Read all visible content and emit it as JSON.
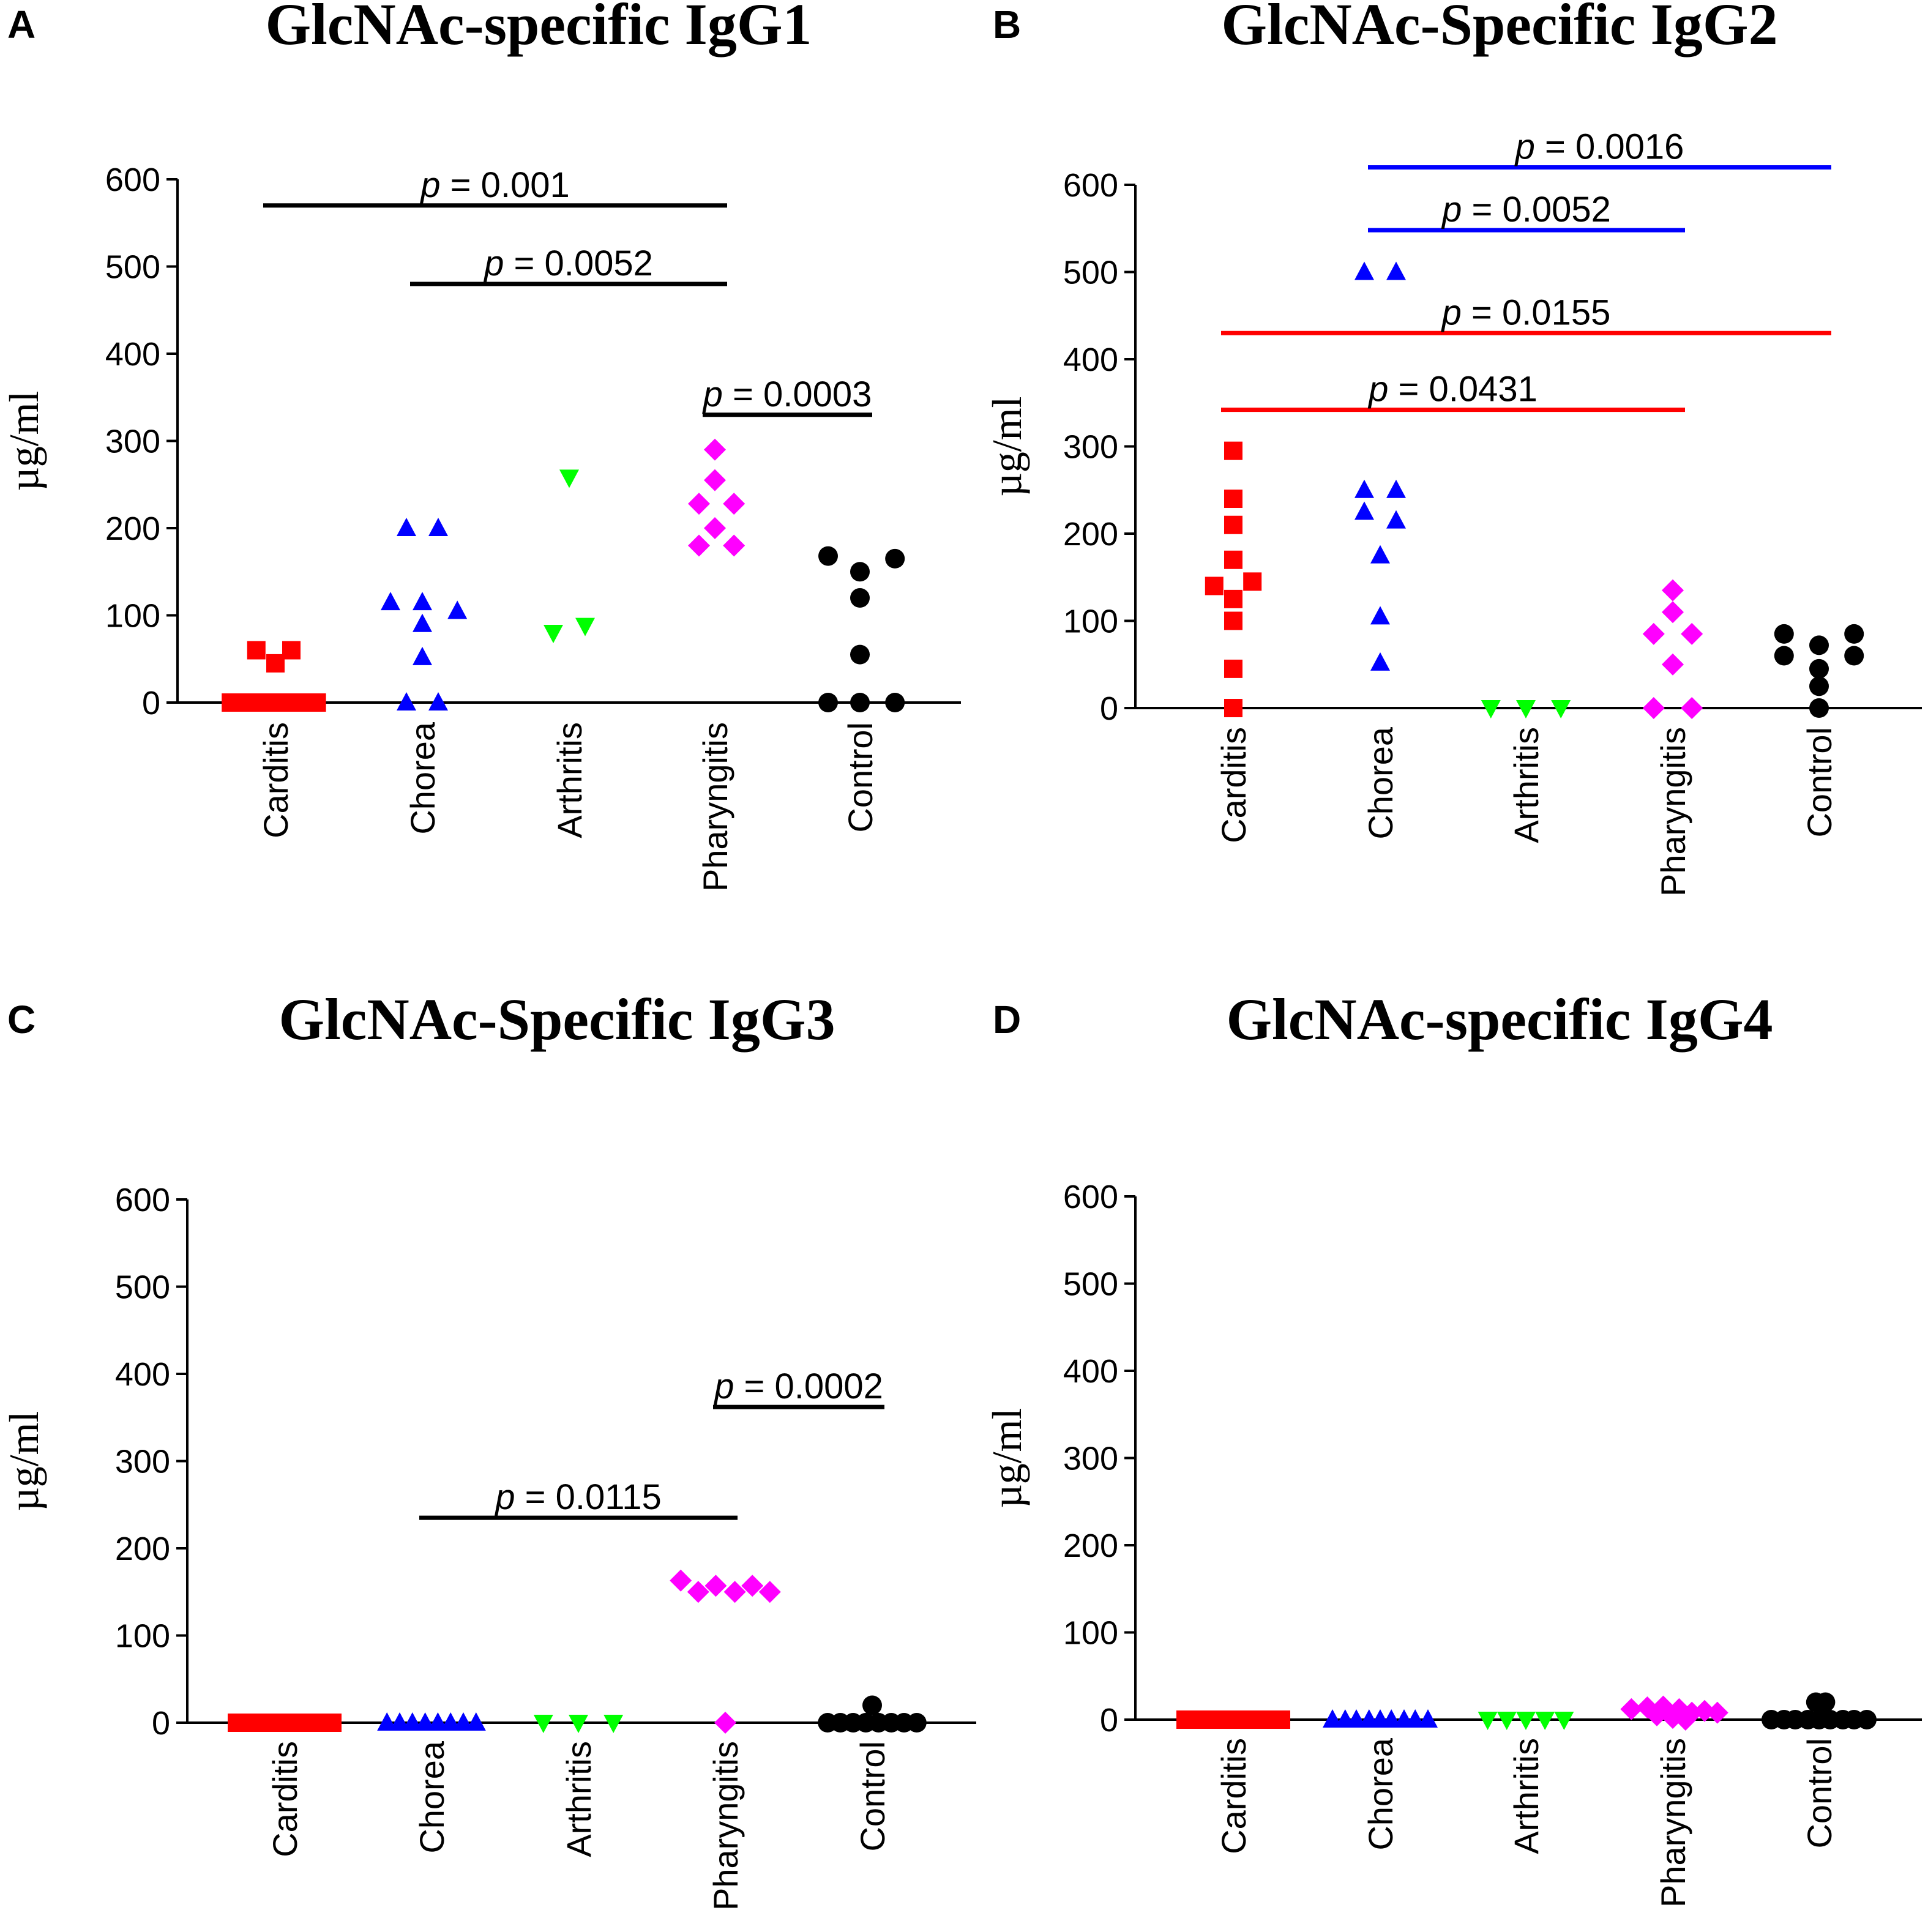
{
  "chart_data": [
    {
      "panel": "A",
      "type": "scatter",
      "title": "GlcNAc-specific IgG1",
      "ylabel": "µg/ml",
      "ylim": [
        0,
        600
      ],
      "yticks": [
        0,
        100,
        200,
        300,
        400,
        500,
        600
      ],
      "categories": [
        "Carditis",
        "Chorea",
        "Arthritis",
        "Pharyngitis",
        "Control"
      ],
      "series": [
        {
          "name": "Carditis",
          "color": "#ff0000",
          "marker": "square",
          "points": [
            [
              -0.12,
              60
            ],
            [
              0.1,
              60
            ],
            [
              0.0,
              45
            ],
            [
              -0.28,
              0
            ],
            [
              -0.19,
              0
            ],
            [
              -0.1,
              0
            ],
            [
              -0.01,
              0
            ],
            [
              0.08,
              0
            ],
            [
              0.17,
              0
            ],
            [
              0.26,
              0
            ]
          ]
        },
        {
          "name": "Chorea",
          "color": "#0000ff",
          "marker": "triangle",
          "points": [
            [
              -0.1,
              200
            ],
            [
              0.1,
              200
            ],
            [
              -0.2,
              115
            ],
            [
              0.0,
              115
            ],
            [
              0.22,
              105
            ],
            [
              0.0,
              90
            ],
            [
              0.0,
              52
            ],
            [
              -0.1,
              0
            ],
            [
              0.1,
              0
            ]
          ]
        },
        {
          "name": "Arthritis",
          "color": "#00ff00",
          "marker": "triangle-down",
          "points": [
            [
              0.0,
              258
            ],
            [
              -0.1,
              80
            ],
            [
              0.1,
              88
            ]
          ]
        },
        {
          "name": "Pharyngitis",
          "color": "#ff00ff",
          "marker": "diamond",
          "points": [
            [
              0.0,
              290
            ],
            [
              0.0,
              255
            ],
            [
              -0.1,
              228
            ],
            [
              0.12,
              228
            ],
            [
              0.0,
              200
            ],
            [
              -0.1,
              180
            ],
            [
              0.12,
              180
            ]
          ]
        },
        {
          "name": "Control",
          "color": "#000000",
          "marker": "circle",
          "points": [
            [
              -0.2,
              168
            ],
            [
              0.0,
              150
            ],
            [
              0.22,
              165
            ],
            [
              0.0,
              120
            ],
            [
              0.0,
              55
            ],
            [
              -0.2,
              0
            ],
            [
              0.0,
              0
            ],
            [
              0.22,
              0
            ]
          ]
        }
      ],
      "significance": [
        {
          "from": 0,
          "to": 3,
          "y": 570,
          "label_p": "p",
          "label_rest": " = 0.001",
          "color": "#000000"
        },
        {
          "from": 1,
          "to": 3,
          "y": 480,
          "label_p": "p",
          "label_rest": " = 0.0052",
          "color": "#000000"
        },
        {
          "from": 3,
          "to": 4,
          "y": 330,
          "label_p": "p",
          "label_rest": " = 0.0003",
          "color": "#000000"
        }
      ]
    },
    {
      "panel": "B",
      "type": "scatter",
      "title": "GlcNAc-Specific IgG2",
      "ylabel": "µg/ml",
      "ylim": [
        0,
        600
      ],
      "yticks": [
        0,
        100,
        200,
        300,
        400,
        500,
        600
      ],
      "categories": [
        "Carditis",
        "Chorea",
        "Arthritis",
        "Pharyngitis",
        "Control"
      ],
      "series": [
        {
          "name": "Carditis",
          "color": "#ff0000",
          "marker": "square",
          "points": [
            [
              0.0,
              295
            ],
            [
              0.0,
              240
            ],
            [
              0.0,
              210
            ],
            [
              0.0,
              170
            ],
            [
              -0.12,
              140
            ],
            [
              0.12,
              145
            ],
            [
              0.0,
              125
            ],
            [
              0.0,
              100
            ],
            [
              0.0,
              45
            ],
            [
              0.0,
              0
            ]
          ]
        },
        {
          "name": "Chorea",
          "color": "#0000ff",
          "marker": "triangle",
          "points": [
            [
              -0.1,
              500
            ],
            [
              0.1,
              500
            ],
            [
              -0.1,
              250
            ],
            [
              0.1,
              250
            ],
            [
              -0.1,
              225
            ],
            [
              0.1,
              215
            ],
            [
              0.0,
              175
            ],
            [
              0.0,
              105
            ],
            [
              0.0,
              52
            ]
          ]
        },
        {
          "name": "Arthritis",
          "color": "#00ff00",
          "marker": "triangle-down",
          "points": [
            [
              -0.22,
              0
            ],
            [
              0.0,
              0
            ],
            [
              0.22,
              0
            ]
          ]
        },
        {
          "name": "Pharyngitis",
          "color": "#ff00ff",
          "marker": "diamond",
          "points": [
            [
              0.0,
              135
            ],
            [
              0.0,
              110
            ],
            [
              -0.12,
              85
            ],
            [
              0.12,
              85
            ],
            [
              0.0,
              50
            ],
            [
              -0.12,
              0
            ],
            [
              0.12,
              0
            ]
          ]
        },
        {
          "name": "Control",
          "color": "#000000",
          "marker": "circle",
          "points": [
            [
              -0.22,
              85
            ],
            [
              0.22,
              85
            ],
            [
              0.0,
              72
            ],
            [
              -0.22,
              60
            ],
            [
              0.22,
              60
            ],
            [
              0.0,
              45
            ],
            [
              0.0,
              25
            ],
            [
              0.0,
              0
            ]
          ]
        }
      ],
      "significance": [
        {
          "from": 1,
          "to": 4,
          "y": 620,
          "label_p": "p",
          "label_rest": " = 0.0016",
          "color": "#0000ff"
        },
        {
          "from": 1,
          "to": 3,
          "y": 548,
          "label_p": "p",
          "label_rest": " = 0.0052",
          "color": "#0000ff"
        },
        {
          "from": 0,
          "to": 4,
          "y": 430,
          "label_p": "p",
          "label_rest": " = 0.0155",
          "color": "#ff0000"
        },
        {
          "from": 0,
          "to": 3,
          "y": 342,
          "label_p": "p",
          "label_rest": " = 0.0431",
          "color": "#ff0000"
        }
      ]
    },
    {
      "panel": "C",
      "type": "scatter",
      "title": "GlcNAc-Specific IgG3",
      "ylabel": "µg/ml",
      "ylim": [
        0,
        600
      ],
      "yticks": [
        0,
        100,
        200,
        300,
        400,
        500,
        600
      ],
      "categories": [
        "Carditis",
        "Chorea",
        "Arthritis",
        "Pharyngitis",
        "Control"
      ],
      "series": [
        {
          "name": "Carditis",
          "color": "#ff0000",
          "marker": "square",
          "points": [
            [
              -0.3,
              0
            ],
            [
              -0.22,
              0
            ],
            [
              -0.15,
              0
            ],
            [
              -0.07,
              0
            ],
            [
              0.0,
              0
            ],
            [
              0.07,
              0
            ],
            [
              0.15,
              0
            ],
            [
              0.22,
              0
            ],
            [
              0.3,
              0
            ]
          ]
        },
        {
          "name": "Chorea",
          "color": "#0000ff",
          "marker": "triangle",
          "points": [
            [
              -0.28,
              0
            ],
            [
              -0.2,
              0
            ],
            [
              -0.12,
              0
            ],
            [
              -0.04,
              0
            ],
            [
              0.04,
              0
            ],
            [
              0.12,
              0
            ],
            [
              0.2,
              0
            ],
            [
              0.28,
              0
            ]
          ]
        },
        {
          "name": "Arthritis",
          "color": "#00ff00",
          "marker": "triangle-down",
          "points": [
            [
              -0.22,
              0
            ],
            [
              0.0,
              0
            ],
            [
              0.22,
              0
            ]
          ]
        },
        {
          "name": "Pharyngitis",
          "color": "#ff00ff",
          "marker": "diamond",
          "points": [
            [
              -0.28,
              163
            ],
            [
              -0.17,
              150
            ],
            [
              -0.06,
              157
            ],
            [
              0.06,
              150
            ],
            [
              0.17,
              157
            ],
            [
              0.28,
              150
            ],
            [
              0.0,
              0
            ]
          ]
        },
        {
          "name": "Control",
          "color": "#000000",
          "marker": "circle",
          "points": [
            [
              0.0,
              20
            ],
            [
              -0.28,
              0
            ],
            [
              -0.2,
              0
            ],
            [
              -0.12,
              0
            ],
            [
              -0.04,
              0
            ],
            [
              0.04,
              0
            ],
            [
              0.12,
              0
            ],
            [
              0.2,
              0
            ],
            [
              0.28,
              0
            ]
          ]
        }
      ],
      "significance": [
        {
          "from": 3,
          "to": 4,
          "y": 362,
          "label_p": "p",
          "label_rest": " = 0.0002",
          "color": "#000000"
        },
        {
          "from": 1,
          "to": 3,
          "y": 235,
          "label_p": "p",
          "label_rest": " = 0.0115",
          "color": "#000000"
        }
      ]
    },
    {
      "panel": "D",
      "type": "scatter",
      "title": "GlcNAc-specific IgG4",
      "ylabel": "µg/ml",
      "ylim": [
        0,
        600
      ],
      "yticks": [
        0,
        100,
        200,
        300,
        400,
        500,
        600
      ],
      "categories": [
        "Carditis",
        "Chorea",
        "Arthritis",
        "Pharyngitis",
        "Control"
      ],
      "series": [
        {
          "name": "Carditis",
          "color": "#ff0000",
          "marker": "square",
          "points": [
            [
              -0.3,
              0
            ],
            [
              -0.22,
              0
            ],
            [
              -0.15,
              0
            ],
            [
              -0.07,
              0
            ],
            [
              0.0,
              0
            ],
            [
              0.07,
              0
            ],
            [
              0.15,
              0
            ],
            [
              0.22,
              0
            ],
            [
              0.3,
              0
            ]
          ]
        },
        {
          "name": "Chorea",
          "color": "#0000ff",
          "marker": "triangle",
          "points": [
            [
              -0.3,
              0
            ],
            [
              -0.22,
              0
            ],
            [
              -0.15,
              0
            ],
            [
              -0.07,
              0
            ],
            [
              0.0,
              0
            ],
            [
              0.07,
              0
            ],
            [
              0.15,
              0
            ],
            [
              0.22,
              0
            ],
            [
              0.3,
              0
            ]
          ]
        },
        {
          "name": "Arthritis",
          "color": "#00ff00",
          "marker": "triangle-down",
          "points": [
            [
              -0.24,
              0
            ],
            [
              -0.12,
              0
            ],
            [
              0.0,
              0
            ],
            [
              0.12,
              0
            ],
            [
              0.24,
              0
            ]
          ]
        },
        {
          "name": "Pharyngitis",
          "color": "#ff00ff",
          "marker": "diamond",
          "points": [
            [
              -0.26,
              12
            ],
            [
              -0.16,
              14
            ],
            [
              -0.06,
              15
            ],
            [
              0.04,
              12
            ],
            [
              0.12,
              8
            ],
            [
              0.2,
              10
            ],
            [
              0.28,
              8
            ],
            [
              -0.1,
              5
            ],
            [
              0.0,
              2
            ],
            [
              0.08,
              0
            ]
          ]
        },
        {
          "name": "Control",
          "color": "#000000",
          "marker": "circle",
          "points": [
            [
              -0.02,
              20
            ],
            [
              0.04,
              20
            ],
            [
              -0.3,
              0
            ],
            [
              -0.22,
              0
            ],
            [
              -0.15,
              0
            ],
            [
              -0.07,
              0
            ],
            [
              0.0,
              0
            ],
            [
              0.07,
              0
            ],
            [
              0.15,
              0
            ],
            [
              0.22,
              0
            ],
            [
              0.3,
              0
            ]
          ]
        }
      ],
      "significance": []
    }
  ]
}
